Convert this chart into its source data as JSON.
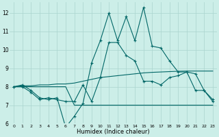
{
  "xlabel": "Humidex (Indice chaleur)",
  "bg_color": "#cceee8",
  "grid_color": "#aad4ce",
  "line_color": "#006666",
  "x_values": [
    0,
    1,
    2,
    3,
    4,
    5,
    6,
    7,
    8,
    9,
    10,
    11,
    12,
    13,
    14,
    15,
    16,
    17,
    18,
    19,
    20,
    21,
    22,
    23
  ],
  "series": [
    [
      8.0,
      8.1,
      7.8,
      7.4,
      7.3,
      7.4,
      5.8,
      6.4,
      7.1,
      9.3,
      10.5,
      12.0,
      10.5,
      11.8,
      10.5,
      12.3,
      10.2,
      10.1,
      9.4,
      8.8,
      8.8,
      7.8,
      7.8,
      7.3
    ],
    [
      8.0,
      8.0,
      7.7,
      7.3,
      7.4,
      7.3,
      7.2,
      7.2,
      8.1,
      7.2,
      8.5,
      10.4,
      10.4,
      9.7,
      9.4,
      8.3,
      8.3,
      8.1,
      8.5,
      8.6,
      8.8,
      8.7,
      7.8,
      7.2
    ],
    [
      8.0,
      8.05,
      8.05,
      8.1,
      8.1,
      8.15,
      8.15,
      8.2,
      8.3,
      8.4,
      8.5,
      8.55,
      8.6,
      8.65,
      8.7,
      8.75,
      8.78,
      8.8,
      8.82,
      8.84,
      8.85,
      8.85,
      8.85,
      8.85
    ],
    [
      8.0,
      8.0,
      8.0,
      8.0,
      8.0,
      8.0,
      8.0,
      7.0,
      7.0,
      7.0,
      7.0,
      7.0,
      7.0,
      7.0,
      7.0,
      7.0,
      7.0,
      7.0,
      7.0,
      7.0,
      7.0,
      7.0,
      7.0,
      7.0
    ]
  ],
  "markers": [
    [
      0,
      1,
      2,
      3,
      4,
      5,
      6,
      7,
      8,
      9,
      10,
      11,
      12,
      13,
      14,
      15,
      16,
      17,
      18,
      19,
      20,
      21,
      22,
      23
    ],
    [
      0,
      1,
      2,
      3,
      4,
      5,
      6,
      7,
      8,
      9,
      10,
      11,
      12,
      13,
      14,
      15,
      16,
      17,
      18,
      19,
      20,
      21,
      22,
      23
    ],
    [],
    []
  ],
  "ylim": [
    6.0,
    12.6
  ],
  "yticks": [
    6,
    7,
    8,
    9,
    10,
    11,
    12
  ],
  "xtick_labels": [
    "0",
    "1",
    "2",
    "3",
    "4",
    "5",
    "6",
    "7",
    "8",
    "9",
    "10",
    "11",
    "12",
    "13",
    "14",
    "15",
    "16",
    "17",
    "18",
    "19",
    "20",
    "21",
    "22",
    "23"
  ]
}
